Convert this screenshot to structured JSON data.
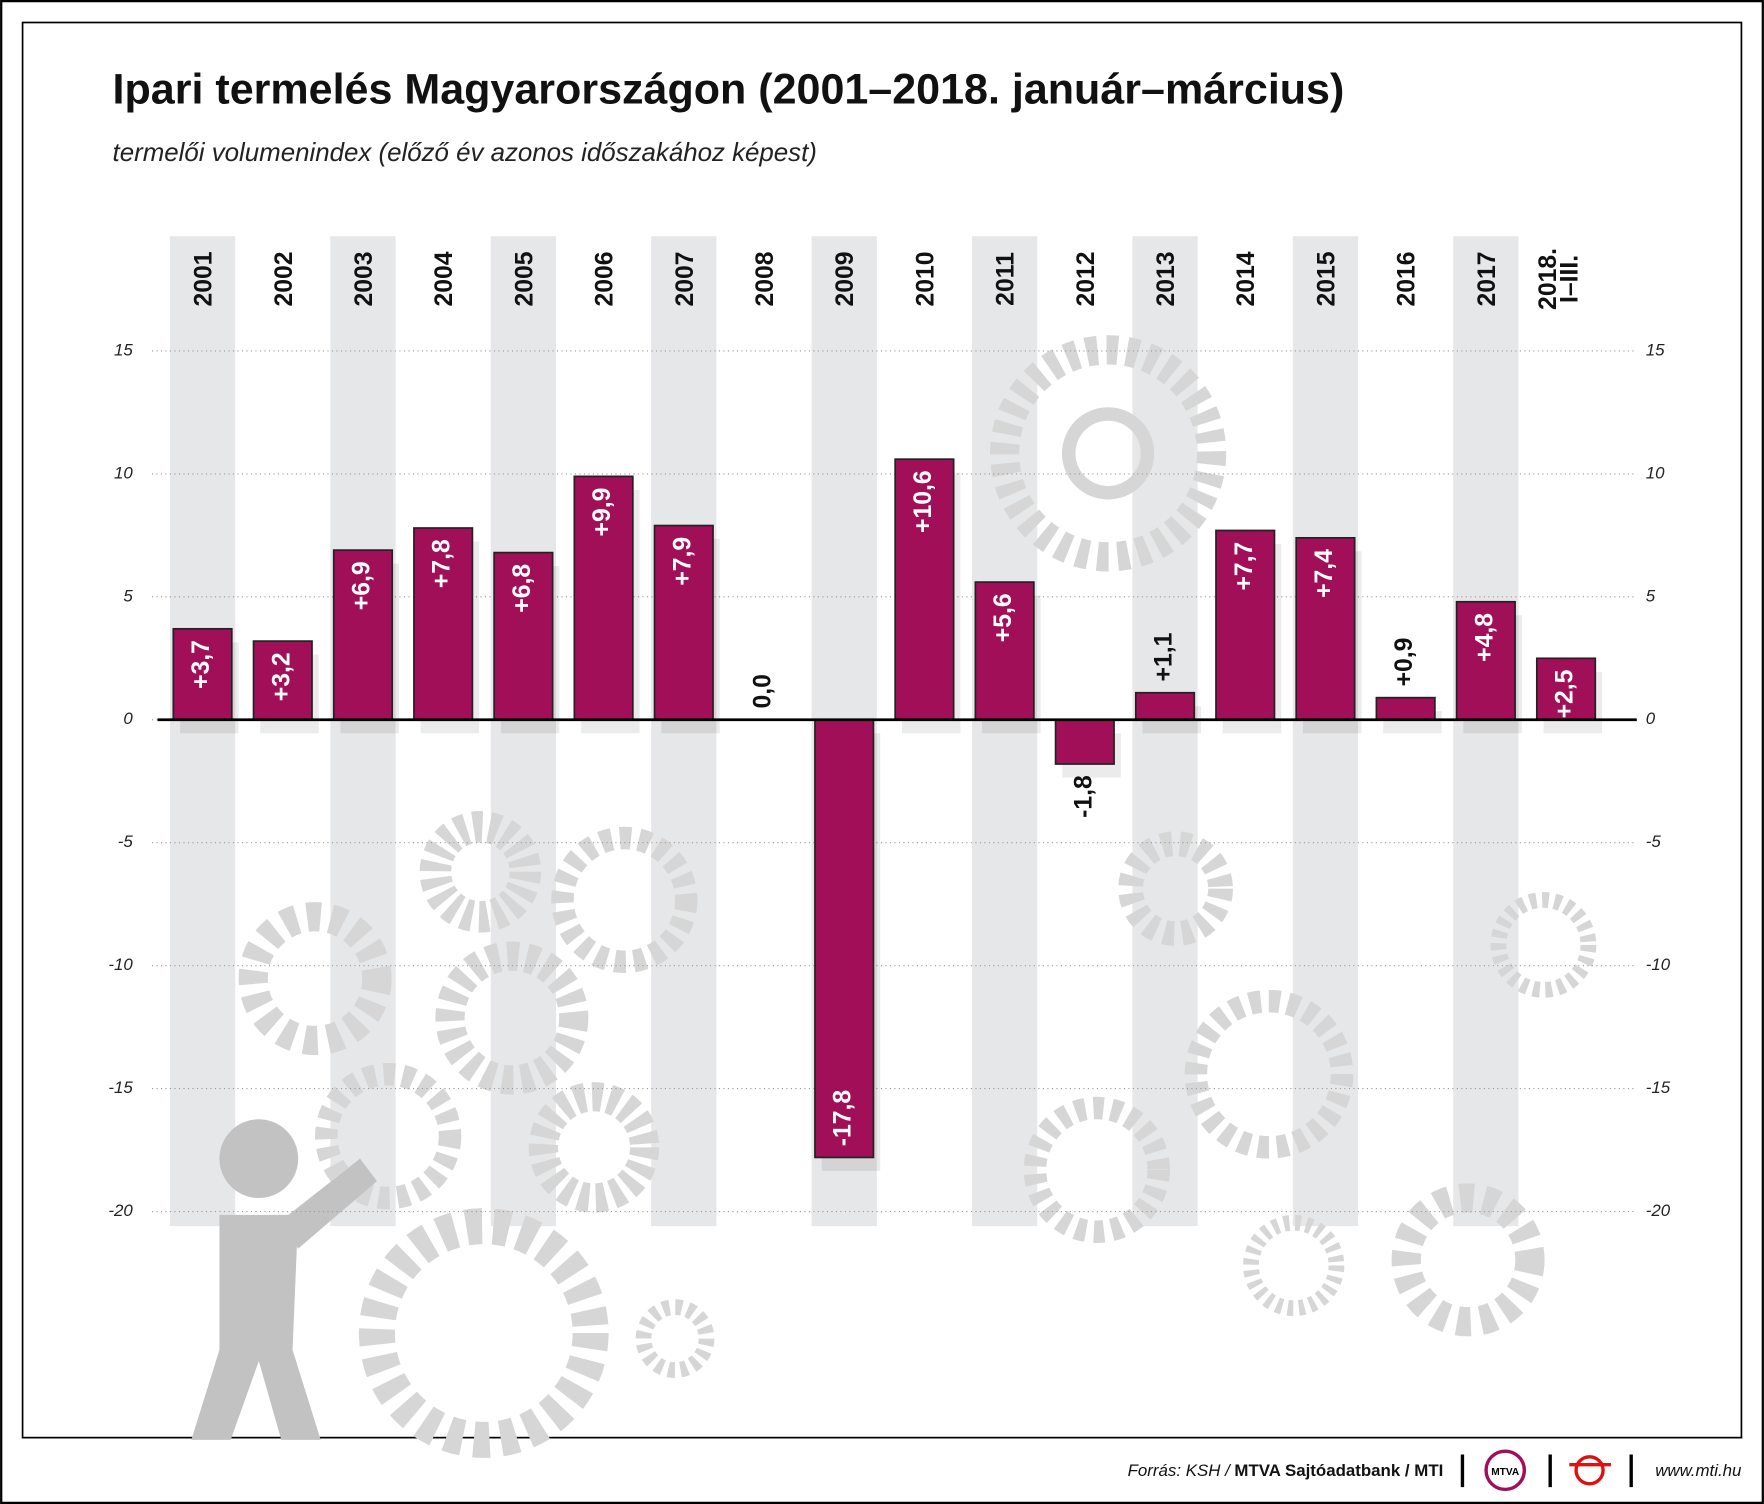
{
  "chart_data": {
    "type": "bar",
    "title": "Ipari termelés Magyarországon (2001–2018. január–március)",
    "subtitle": "termelői volumenindex (előző év azonos időszakához képest)",
    "categories": [
      "2001",
      "2002",
      "2003",
      "2004",
      "2005",
      "2006",
      "2007",
      "2008",
      "2009",
      "2010",
      "2011",
      "2012",
      "2013",
      "2014",
      "2015",
      "2016",
      "2017",
      "2018.\nI–III."
    ],
    "values": [
      3.7,
      3.2,
      6.9,
      7.8,
      6.8,
      9.9,
      7.9,
      0.0,
      -17.8,
      10.6,
      5.6,
      -1.8,
      1.1,
      7.7,
      7.4,
      0.9,
      4.8,
      2.5
    ],
    "value_labels": [
      "+3,7",
      "+3,2",
      "+6,9",
      "+7,8",
      "+6,8",
      "+9,9",
      "+7,9",
      "0,0",
      "-17,8",
      "+10,6",
      "+5,6",
      "-1,8",
      "+1,1",
      "+7,7",
      "+7,4",
      "+0,9",
      "+4,8",
      "+2,5"
    ],
    "color": "#a10f58",
    "ylim": [
      -20,
      15
    ],
    "yticks": [
      15,
      10,
      5,
      0,
      -5,
      -10,
      -15,
      -20
    ],
    "grid": true
  },
  "footer": {
    "source_label": "Forrás: KSH / ",
    "source_bold": "MTVA Sajtóadatbank / MTI",
    "logo": "MTVA",
    "url": "www.mti.hu"
  }
}
